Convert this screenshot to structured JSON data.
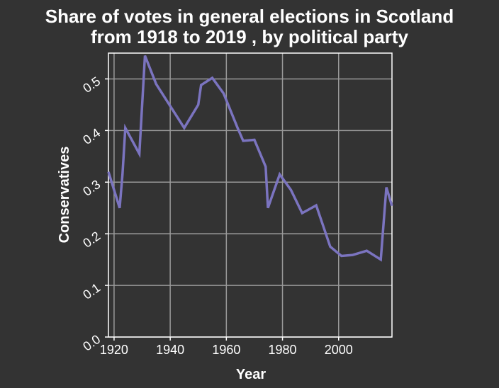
{
  "chart_data": {
    "type": "line",
    "title_lines": [
      "Share of votes in general elections in Scotland",
      "from 1918 to 2019 , by political party"
    ],
    "xlabel": "Year",
    "ylabel": "Conservatives",
    "xlim": [
      1918,
      2019
    ],
    "ylim": [
      0.0,
      0.55
    ],
    "xticks": [
      1920,
      1940,
      1960,
      1980,
      2000
    ],
    "xtick_labels": [
      "1920",
      "1940",
      "1960",
      "1980",
      "2000"
    ],
    "yticks": [
      0.0,
      0.1,
      0.2,
      0.3,
      0.4,
      0.5
    ],
    "ytick_labels": [
      "0.0",
      "0.1",
      "0.2",
      "0.3",
      "0.4",
      "0.5"
    ],
    "grid": true,
    "line_color": "#7b74c0",
    "background": "#333333",
    "series": [
      {
        "name": "Conservatives",
        "x": [
          1918,
          1922,
          1923,
          1924,
          1929,
          1931,
          1935,
          1945,
          1950,
          1951,
          1955,
          1959,
          1964,
          1966,
          1970,
          1974,
          1974.8,
          1979,
          1983,
          1987,
          1992,
          1997,
          2001,
          2005,
          2010,
          2015,
          2017,
          2019
        ],
        "y": [
          0.32,
          0.25,
          0.315,
          0.405,
          0.355,
          0.545,
          0.49,
          0.405,
          0.45,
          0.488,
          0.502,
          0.472,
          0.405,
          0.38,
          0.382,
          0.33,
          0.25,
          0.315,
          0.285,
          0.24,
          0.255,
          0.175,
          0.157,
          0.159,
          0.167,
          0.15,
          0.29,
          0.254
        ]
      }
    ]
  }
}
